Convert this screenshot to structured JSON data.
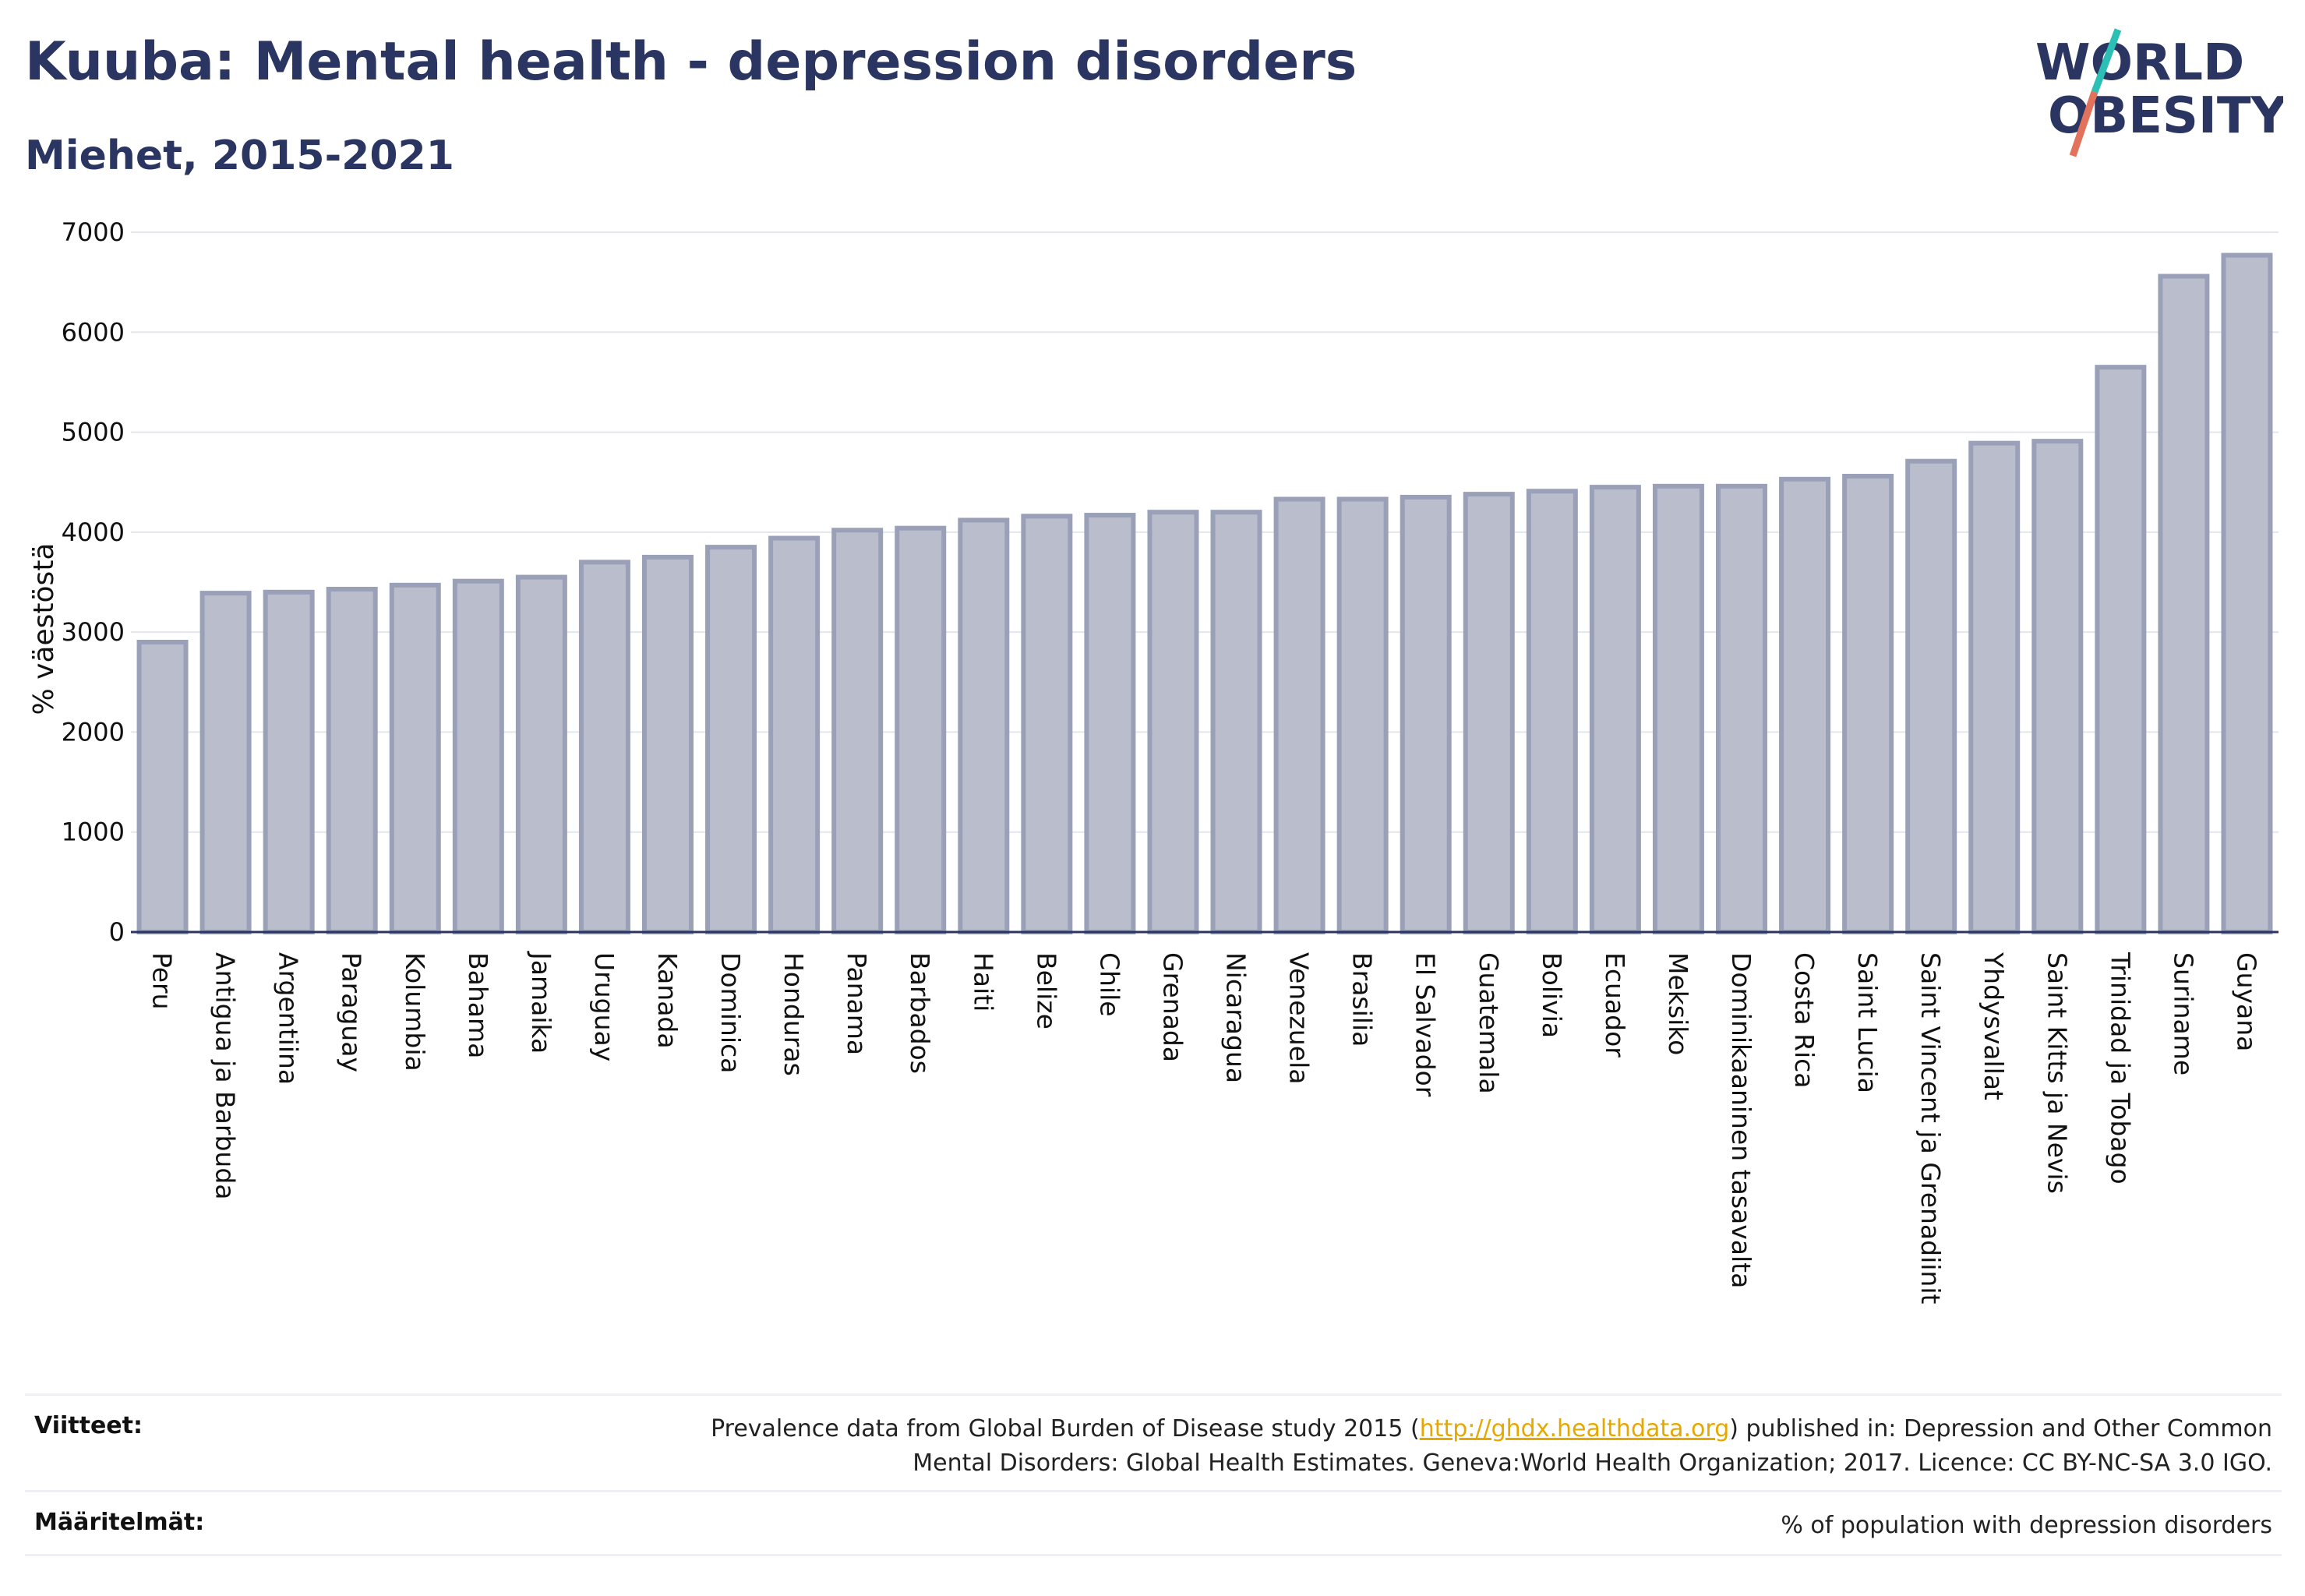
{
  "header": {
    "title": "Kuuba: Mental health - depression disorders",
    "subtitle": "Miehet, 2015-2021"
  },
  "logo": {
    "line1": "WORLD",
    "line2": "OBESITY"
  },
  "chart_data": {
    "type": "bar",
    "title": "Kuuba: Mental health - depression disorders",
    "subtitle": "Miehet, 2015-2021",
    "ylabel": "% väestöstä",
    "xlabel": "",
    "ylim": [
      0,
      7000
    ],
    "yticks": [
      0,
      1000,
      2000,
      3000,
      4000,
      5000,
      6000,
      7000
    ],
    "grid": true,
    "bar_color": "#b9bdcc",
    "bar_edge_color": "#9aa0b8",
    "categories": [
      "Peru",
      "Antigua ja Barbuda",
      "Argentiina",
      "Paraguay",
      "Kolumbia",
      "Bahama",
      "Jamaika",
      "Uruguay",
      "Kanada",
      "Dominica",
      "Honduras",
      "Panama",
      "Barbados",
      "Haiti",
      "Belize",
      "Chile",
      "Grenada",
      "Nicaragua",
      "Venezuela",
      "Brasilia",
      "El Salvador",
      "Guatemala",
      "Bolivia",
      "Ecuador",
      "Meksiko",
      "Dominikaaninen tasavalta",
      "Costa Rica",
      "Saint Lucia",
      "Saint Vincent ja Grenadiinit",
      "Yhdysvallat",
      "Saint Kitts ja Nevis",
      "Trinidad ja Tobago",
      "Suriname",
      "Guyana"
    ],
    "values": [
      2900,
      3390,
      3400,
      3430,
      3470,
      3510,
      3550,
      3700,
      3750,
      3850,
      3940,
      4020,
      4040,
      4120,
      4160,
      4170,
      4200,
      4200,
      4330,
      4330,
      4350,
      4380,
      4410,
      4450,
      4460,
      4460,
      4530,
      4560,
      4710,
      4890,
      4910,
      5650,
      6560,
      6770
    ]
  },
  "footer": {
    "refs_label": "Viitteet:",
    "refs_text_before": "Prevalence data from Global Burden of Disease study 2015 (",
    "refs_link": "http://ghdx.healthdata.org",
    "refs_text_after": ") published in: Depression and Other Common",
    "refs_text_line2": "Mental Disorders: Global Health Estimates. Geneva:World Health Organization; 2017. Licence: CC BY-NC-SA 3.0 IGO.",
    "defs_label": "Määritelmät:",
    "defs_text": "% of population with depression disorders"
  }
}
